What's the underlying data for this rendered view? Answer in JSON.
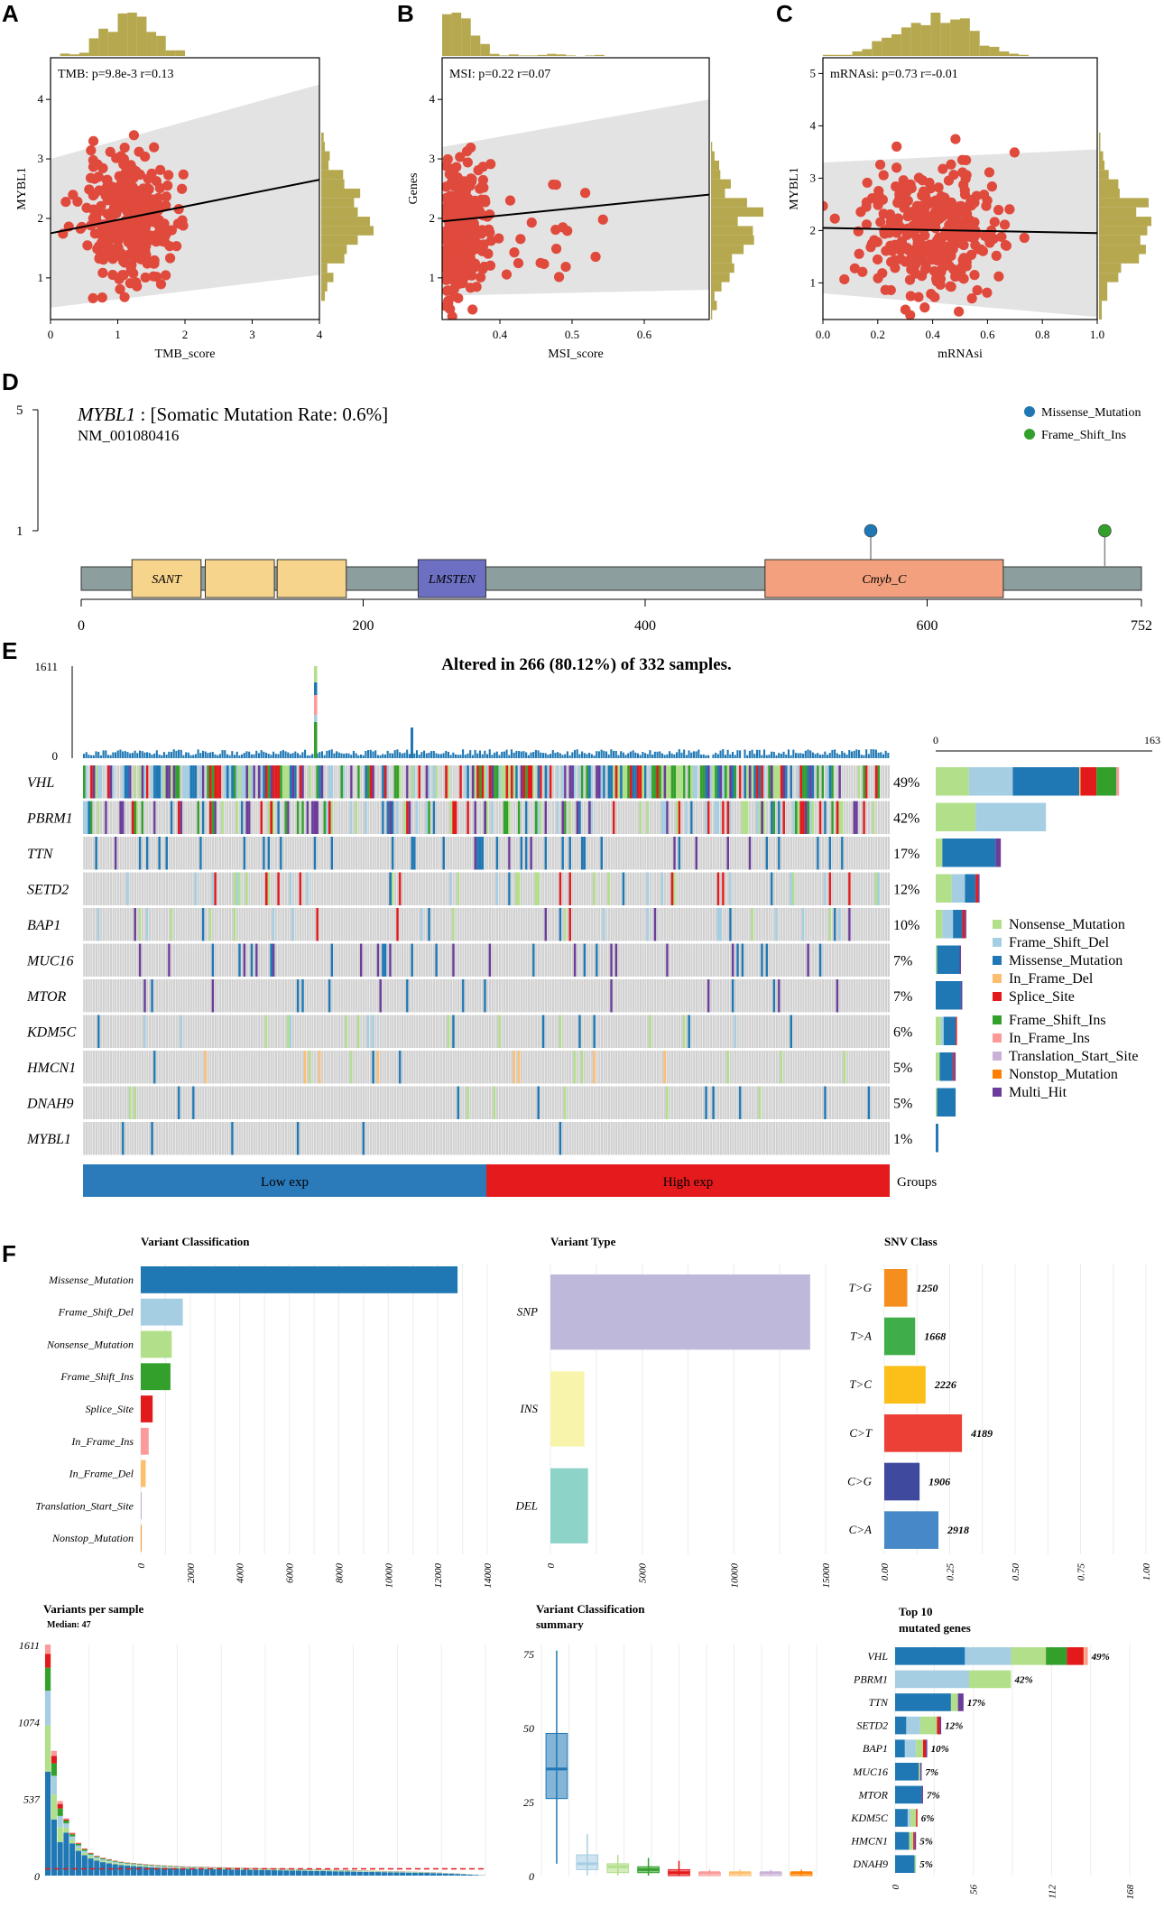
{
  "panels": {
    "A": "A",
    "B": "B",
    "C": "C",
    "D": "D",
    "E": "E",
    "F": "F"
  },
  "colors": {
    "point": "#e04a3c",
    "hist": "#b5a84f",
    "band": "#e3e3e3",
    "nonsense": "#b2df8a",
    "frame_shift_del": "#a6cee3",
    "missense": "#1f78b4",
    "in_frame_del": "#fdbf6f",
    "splice": "#e31a1c",
    "frame_shift_ins": "#33a02c",
    "in_frame_ins": "#fb9a99",
    "translation_start": "#cab2d6",
    "nonstop": "#ff7f00",
    "multi_hit": "#6a3d9a",
    "grey": "#d0d0d0",
    "low_exp": "#2b7bba",
    "high_exp": "#e41a1c"
  },
  "chart_data": [
    {
      "id": "A",
      "type": "scatter",
      "annotation": "TMB: p=9.8e-3 r=0.13",
      "xlabel": "TMB_score",
      "ylabel": "MYBL1",
      "xlim": [
        0,
        4
      ],
      "ylim": [
        0.3,
        4.7
      ],
      "xticks": [
        "0",
        "1",
        "2",
        "3",
        "4"
      ],
      "yticks": [
        "1",
        "2",
        "3",
        "4"
      ],
      "fit": {
        "x": [
          0,
          4
        ],
        "y": [
          1.75,
          2.65
        ]
      }
    },
    {
      "id": "B",
      "type": "scatter",
      "annotation": "MSI: p=0.22 r=0.07",
      "xlabel": "MSI_score",
      "ylabel": "Genes",
      "xlim": [
        0.32,
        0.69
      ],
      "ylim": [
        0.3,
        4.7
      ],
      "xticks": [
        "0.4",
        "0.5",
        "0.6"
      ],
      "yticks": [
        "1",
        "2",
        "3",
        "4"
      ],
      "fit": {
        "x": [
          0.32,
          0.69
        ],
        "y": [
          1.95,
          2.4
        ]
      }
    },
    {
      "id": "C",
      "type": "scatter",
      "annotation": "mRNAsi: p=0.73 r=-0.01",
      "xlabel": "mRNAsi",
      "ylabel": "MYBL1",
      "xlim": [
        0,
        1
      ],
      "ylim": [
        0.3,
        5.3
      ],
      "xticks": [
        "0.0",
        "0.2",
        "0.4",
        "0.6",
        "0.8",
        "1.0"
      ],
      "yticks": [
        "1",
        "2",
        "3",
        "4",
        "5"
      ],
      "fit": {
        "x": [
          0,
          1
        ],
        "y": [
          2.05,
          1.95
        ]
      }
    },
    {
      "id": "D",
      "type": "lollipop",
      "gene": "MYBL1",
      "title_rest": ": [Somatic Mutation Rate: 0.6%]",
      "transcript": "NM_001080416",
      "ylim": [
        1,
        5
      ],
      "yticks": [
        "5",
        "1"
      ],
      "xlim": [
        0,
        752
      ],
      "xticks": [
        "0",
        "200",
        "400",
        "600",
        "752"
      ],
      "domains": [
        {
          "label": "SANT",
          "start": 36,
          "end": 85
        },
        {
          "label": "",
          "start": 88,
          "end": 137
        },
        {
          "label": "",
          "start": 139,
          "end": 188
        },
        {
          "label": "LMSTEN",
          "start": 239,
          "end": 287
        },
        {
          "label": "Cmyb_C",
          "start": 485,
          "end": 654
        }
      ],
      "mutations": [
        {
          "pos": 560,
          "count": 1,
          "type": "Missense_Mutation"
        },
        {
          "pos": 726,
          "count": 1,
          "type": "Frame_Shift_Ins"
        }
      ],
      "legend": [
        "Missense_Mutation",
        "Frame_Shift_Ins"
      ]
    },
    {
      "id": "E",
      "type": "oncoplot",
      "title": "Altered in 266 (80.12%) of 332 samples.",
      "tmb_ticks": [
        "1611",
        "0"
      ],
      "bar_axis": [
        "0",
        "163"
      ],
      "n_samples": 332,
      "low_count": 166,
      "genes": [
        "VHL",
        "PBRM1",
        "TTN",
        "SETD2",
        "BAP1",
        "MUC16",
        "MTOR",
        "KDM5C",
        "HMCN1",
        "DNAH9",
        "MYBL1"
      ],
      "percents": [
        "49%",
        "42%",
        "17%",
        "12%",
        "10%",
        "7%",
        "7%",
        "6%",
        "5%",
        "5%",
        "1%"
      ],
      "gene_bars": [
        [
          25,
          33,
          50,
          1,
          12,
          15,
          2,
          0,
          0,
          0
        ],
        [
          30,
          53,
          0,
          0,
          0,
          0,
          0,
          0,
          0,
          0
        ],
        [
          5,
          0,
          40,
          0,
          0,
          0,
          0,
          0,
          0,
          4
        ],
        [
          12,
          10,
          8,
          0,
          2,
          0,
          0,
          0,
          0,
          1
        ],
        [
          5,
          8,
          7,
          0,
          2,
          0,
          0,
          0,
          0,
          1
        ],
        [
          1,
          0,
          17,
          0,
          0,
          0,
          0,
          0,
          0,
          1
        ],
        [
          0,
          0,
          19,
          0,
          0,
          0,
          0,
          0,
          0,
          1
        ],
        [
          4,
          2,
          9,
          0,
          1,
          0,
          0,
          0,
          0,
          0
        ],
        [
          3,
          0,
          10,
          0,
          1,
          0,
          0,
          0,
          0,
          1
        ],
        [
          1,
          0,
          14,
          0,
          0,
          0,
          0,
          0,
          0,
          0
        ],
        [
          0,
          0,
          2,
          0,
          0,
          0,
          0,
          0,
          0,
          0
        ]
      ],
      "groups": [
        {
          "label": "Low exp"
        },
        {
          "label": "High exp"
        }
      ],
      "groups_label": "Groups",
      "legend": [
        "Nonsense_Mutation",
        "Frame_Shift_Del",
        "Missense_Mutation",
        "In_Frame_Del",
        "Splice_Site",
        "Frame_Shift_Ins",
        "In_Frame_Ins",
        "Translation_Start_Site",
        "Nonstop_Mutation",
        "Multi_Hit"
      ]
    },
    {
      "id": "F1",
      "type": "bar",
      "title": "Variant Classification",
      "categories": [
        "Missense_Mutation",
        "Frame_Shift_Del",
        "Nonsense_Mutation",
        "Frame_Shift_Ins",
        "Splice_Site",
        "In_Frame_Ins",
        "In_Frame_Del",
        "Translation_Start_Site",
        "Nonstop_Mutation"
      ],
      "values": [
        12800,
        1700,
        1250,
        1200,
        480,
        320,
        200,
        40,
        30
      ],
      "xlim": [
        0,
        14000
      ],
      "xticks": [
        "0",
        "2000",
        "4000",
        "6000",
        "8000",
        "10000",
        "12000",
        "14000"
      ]
    },
    {
      "id": "F2",
      "type": "bar",
      "title": "Variant Type",
      "categories": [
        "SNP",
        "INS",
        "DEL"
      ],
      "values": [
        14157,
        1850,
        2050
      ],
      "xlim": [
        0,
        15000
      ],
      "xticks": [
        "0",
        "5000",
        "10000",
        "15000"
      ]
    },
    {
      "id": "F3",
      "type": "bar",
      "title": "SNV Class",
      "categories": [
        "T>G",
        "T>A",
        "T>C",
        "C>T",
        "C>G",
        "C>A"
      ],
      "values": [
        0.088,
        0.118,
        0.158,
        0.297,
        0.135,
        0.207
      ],
      "labels": [
        "1250",
        "1668",
        "2226",
        "4189",
        "1906",
        "2918"
      ],
      "xlim": [
        0,
        1
      ],
      "xticks": [
        "0.00",
        "0.25",
        "0.50",
        "0.75",
        "1.00"
      ]
    },
    {
      "id": "F4",
      "type": "bar",
      "title": "Variants per sample",
      "subtitle": "Median: 47",
      "yticks": [
        "1611",
        "1074",
        "537",
        "0"
      ],
      "ylim": [
        0,
        1611
      ],
      "median": 47,
      "values": [
        1611,
        870,
        520,
        400,
        300,
        230,
        190,
        160,
        140,
        125,
        115,
        105,
        98,
        92,
        88,
        84,
        80,
        77,
        74,
        72,
        70,
        68,
        66,
        64,
        63,
        62,
        61,
        60,
        59,
        58,
        57,
        56,
        55,
        54,
        53,
        52,
        51,
        50,
        49,
        48,
        47,
        46,
        45,
        44,
        43,
        42,
        41,
        40,
        39,
        38,
        37,
        36,
        35,
        34,
        33,
        32,
        31,
        30,
        29,
        28,
        27,
        26,
        25,
        23,
        21,
        19,
        17,
        15,
        12,
        9,
        6,
        3
      ]
    },
    {
      "id": "F5",
      "type": "box",
      "title": "Variant Classification",
      "subtitle": "summary",
      "ylim": [
        0,
        78
      ],
      "yticks": [
        "75",
        "50",
        "25",
        "0"
      ],
      "boxes": [
        {
          "min": 4,
          "q1": 26,
          "median": 36,
          "q3": 48,
          "max": 76
        },
        {
          "min": 0,
          "q1": 2,
          "median": 4,
          "q3": 7,
          "max": 14
        },
        {
          "min": 0,
          "q1": 1,
          "median": 3,
          "q3": 4,
          "max": 7
        },
        {
          "min": 0,
          "q1": 1,
          "median": 2,
          "q3": 3,
          "max": 6
        },
        {
          "min": 0,
          "q1": 0,
          "median": 1,
          "q3": 2,
          "max": 5
        },
        {
          "min": 0,
          "q1": 0,
          "median": 1,
          "q3": 1,
          "max": 2
        },
        {
          "min": 0,
          "q1": 0,
          "median": 1,
          "q3": 1,
          "max": 2
        },
        {
          "min": 0,
          "q1": 0,
          "median": 1,
          "q3": 1,
          "max": 2
        },
        {
          "min": 0,
          "q1": 0,
          "median": 1,
          "q3": 1,
          "max": 2
        }
      ]
    },
    {
      "id": "F6",
      "type": "bar",
      "title": "Top 10",
      "subtitle": "mutated genes",
      "categories": [
        "VHL",
        "PBRM1",
        "TTN",
        "SETD2",
        "BAP1",
        "MUC16",
        "MTOR",
        "KDM5C",
        "HMCN1",
        "DNAH9"
      ],
      "labels": [
        "49%",
        "42%",
        "17%",
        "12%",
        "10%",
        "7%",
        "7%",
        "6%",
        "5%",
        "5%"
      ],
      "xlim": [
        0,
        168
      ],
      "xticks": [
        "0",
        "56",
        "112",
        "168"
      ]
    }
  ]
}
